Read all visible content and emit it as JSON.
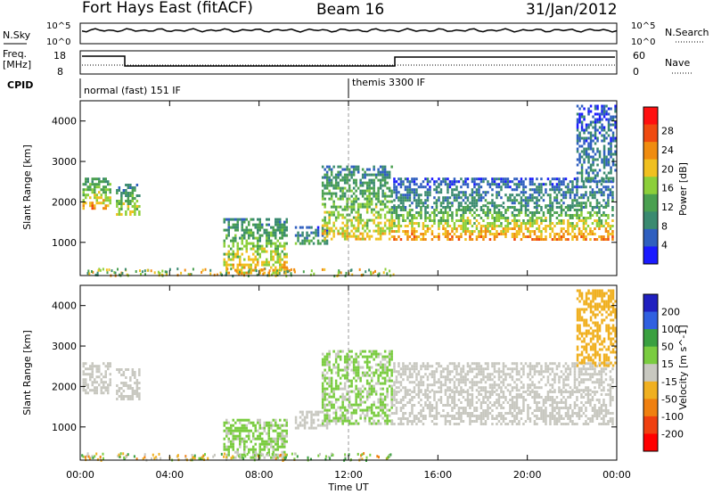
{
  "header": {
    "station": "Fort Hays East (fitACF)",
    "beam": "Beam 16",
    "date": "31/Jan/2012"
  },
  "strips": {
    "nsky_label": "N.Sky",
    "nsearch_label": "N.Search",
    "noise_ticks": [
      "10^5",
      "10^0"
    ],
    "freq_label": "Freq.",
    "freq_unit": "[MHz]",
    "freq_ticks": [
      "18",
      "8"
    ],
    "nave_label": "Nave",
    "nave_ticks": [
      "60",
      "0"
    ],
    "cpid_label": "CPID",
    "modes": [
      {
        "name": "normal (fast) 151 IF",
        "start": 0
      },
      {
        "name": "themis 3300 IF",
        "start": 12
      }
    ]
  },
  "chart_data": [
    {
      "type": "heatmap",
      "panel": "power",
      "ylabel": "Slant Range [km]",
      "xlabel": "",
      "xlim": [
        0,
        24
      ],
      "ylim": [
        180,
        4500
      ],
      "y_ticks": [
        1000,
        2000,
        3000,
        4000
      ],
      "colorbar": {
        "label": "Power [dB]",
        "ticks": [
          4,
          8,
          12,
          16,
          20,
          24,
          28
        ],
        "colors": [
          "#1a1aff",
          "#2f5fbf",
          "#3a8a70",
          "#4aa050",
          "#8ccf3a",
          "#f0c020",
          "#f08c10",
          "#f04a10",
          "#ff1010"
        ]
      },
      "regions": [
        {
          "t0": 0.1,
          "t1": 1.3,
          "r0": 1850,
          "r1": 2600,
          "level": 24
        },
        {
          "t0": 1.6,
          "t1": 2.6,
          "r0": 1700,
          "r1": 2450,
          "level": 20
        },
        {
          "t0": 6.4,
          "t1": 9.2,
          "r0": 250,
          "r1": 1600,
          "level": 22
        },
        {
          "t0": 9.6,
          "t1": 11.0,
          "r0": 1000,
          "r1": 1400,
          "level": 12
        },
        {
          "t0": 10.8,
          "t1": 13.9,
          "r0": 1100,
          "r1": 2900,
          "level": 20
        },
        {
          "t0": 13.9,
          "t1": 23.8,
          "r0": 1050,
          "r1": 1900,
          "level": 26
        },
        {
          "t0": 14.0,
          "t1": 23.8,
          "r0": 1900,
          "r1": 2600,
          "level": 10
        },
        {
          "t0": 22.2,
          "t1": 23.9,
          "r0": 2500,
          "r1": 4400,
          "level": 8
        }
      ]
    },
    {
      "type": "heatmap",
      "panel": "velocity",
      "ylabel": "Slant Range [km]",
      "xlabel": "Time UT",
      "xlim": [
        0,
        24
      ],
      "ylim": [
        180,
        4500
      ],
      "y_ticks": [
        1000,
        2000,
        3000,
        4000
      ],
      "x_ticks": [
        "00:00",
        "04:00",
        "08:00",
        "12:00",
        "16:00",
        "20:00",
        "00:00"
      ],
      "colorbar": {
        "label": "Velocity [m s^-1]",
        "ticks": [
          200,
          100,
          50,
          15,
          -15,
          -50,
          -100,
          -200
        ],
        "colors": [
          "#2020c0",
          "#3060e0",
          "#3aa040",
          "#7acc40",
          "#c8c8c0",
          "#f0b020",
          "#f08010",
          "#f04010",
          "#ff0000"
        ]
      },
      "regions": [
        {
          "t0": 0.1,
          "t1": 1.3,
          "r0": 1850,
          "r1": 2600,
          "level": 0
        },
        {
          "t0": 1.6,
          "t1": 2.6,
          "r0": 1700,
          "r1": 2450,
          "level": 0
        },
        {
          "t0": 6.4,
          "t1": 9.2,
          "r0": 250,
          "r1": 1200,
          "level": 30
        },
        {
          "t0": 9.6,
          "t1": 11.0,
          "r0": 1000,
          "r1": 1400,
          "level": 0
        },
        {
          "t0": 10.8,
          "t1": 13.9,
          "r0": 1100,
          "r1": 2900,
          "level": 30
        },
        {
          "t0": 13.9,
          "t1": 23.8,
          "r0": 1050,
          "r1": 1900,
          "level": 0
        },
        {
          "t0": 14.0,
          "t1": 23.8,
          "r0": 1900,
          "r1": 2600,
          "level": 0
        },
        {
          "t0": 22.2,
          "t1": 23.9,
          "r0": 2500,
          "r1": 4400,
          "level": -60
        }
      ]
    }
  ]
}
